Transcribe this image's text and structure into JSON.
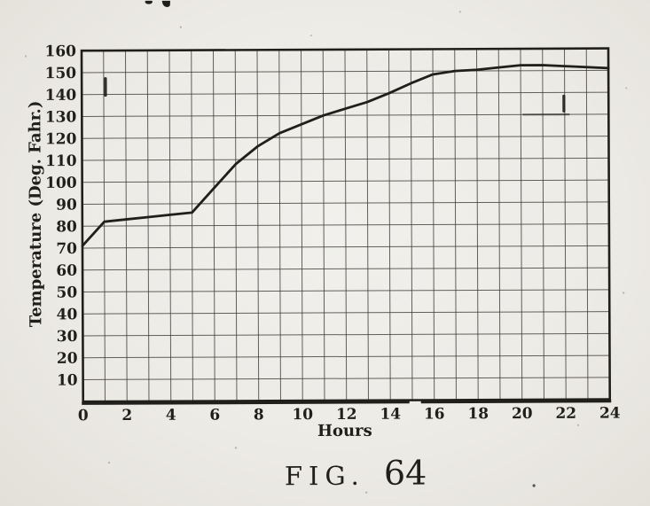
{
  "page": {
    "paper_color": "#edebe6",
    "ink_color": "#211f1c"
  },
  "figure": {
    "caption_prefix": "FIG.",
    "caption_number": "64"
  },
  "chart_data": {
    "type": "line",
    "title": "FIG. 64",
    "xlabel": "Hours",
    "ylabel": "Temperature (Deg. Fahr.)",
    "x": [
      0,
      1,
      2,
      3,
      4,
      5,
      6,
      7,
      8,
      9,
      10,
      11,
      12,
      13,
      14,
      15,
      16,
      17,
      18,
      19,
      20,
      21,
      22,
      23,
      24
    ],
    "series": [
      {
        "name": "temperature",
        "values": [
          71,
          82,
          83,
          84,
          85,
          86,
          97,
          108,
          116,
          122,
          126,
          130,
          133,
          136,
          140,
          144.5,
          148.5,
          150,
          150.5,
          151.5,
          152.5,
          152.5,
          152,
          151.5,
          151
        ]
      }
    ],
    "xlim": [
      0,
      24
    ],
    "ylim": [
      0,
      160
    ],
    "x_grid_interval": 1,
    "y_grid_interval": 10,
    "x_tick_labels": [
      "0",
      "2",
      "4",
      "6",
      "8",
      "10",
      "12",
      "14",
      "16",
      "18",
      "20",
      "22",
      "24"
    ],
    "y_tick_labels": [
      "10",
      "20",
      "30",
      "40",
      "50",
      "60",
      "70",
      "80",
      "90",
      "100",
      "110",
      "120",
      "130",
      "140",
      "150",
      "160"
    ],
    "grid": true,
    "legend": "none",
    "line_color": "#211f1c"
  }
}
